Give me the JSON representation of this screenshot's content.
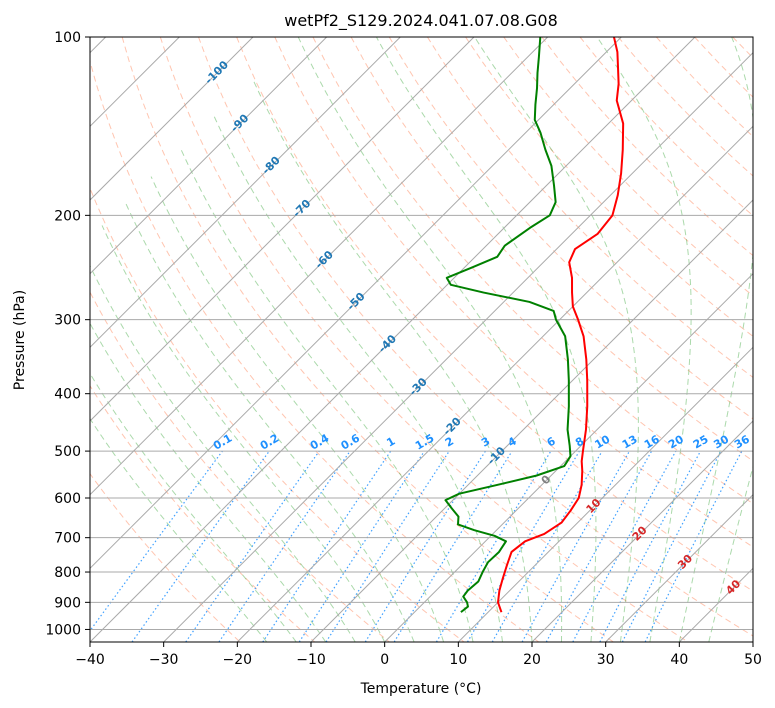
{
  "chart_data": {
    "type": "skew-t",
    "title": "wetPf2_S129.2024.041.07.08.G08",
    "xlabel": "Temperature (°C)",
    "ylabel": "Pressure (hPa)",
    "xlim": [
      -40,
      50
    ],
    "ylim": [
      1050,
      100
    ],
    "x_ticks": [
      -40,
      -30,
      -20,
      -10,
      0,
      10,
      20,
      30,
      40,
      50
    ],
    "y_ticks": [
      100,
      200,
      300,
      400,
      500,
      600,
      700,
      800,
      900,
      1000
    ],
    "grid": true,
    "colors": {
      "temperature": "#ff0000",
      "dewpoint": "#008000",
      "grid": "#aaaaaa",
      "dry_adiabat": "#ff7f50",
      "moist_adiabat": "#2ca02c",
      "mixing_ratio": "#1e90ff",
      "mixing_ratio_label": "#1e90ff",
      "isotherm_label_cold": "#1f77b4",
      "isotherm_label_warm": "#d62728",
      "isotherm_label_zero": "#808080"
    },
    "isotherm_labels": [
      "-100",
      "-90",
      "-80",
      "-70",
      "-60",
      "-50",
      "-40",
      "-30",
      "-20",
      "-10",
      "0",
      "10",
      "20",
      "30",
      "40"
    ],
    "mixing_ratio_labels": [
      "0.1",
      "0.2",
      "0.4",
      "0.6",
      "1",
      "1.5",
      "2",
      "3",
      "4",
      "6",
      "8",
      "10",
      "13",
      "16",
      "20",
      "25",
      "30",
      "36"
    ],
    "series": [
      {
        "name": "Temperature",
        "points": [
          {
            "p": 935,
            "t": 11.8
          },
          {
            "p": 900,
            "t": 10.0
          },
          {
            "p": 860,
            "t": 8.6
          },
          {
            "p": 820,
            "t": 7.4
          },
          {
            "p": 780,
            "t": 6.2
          },
          {
            "p": 740,
            "t": 5.0
          },
          {
            "p": 710,
            "t": 5.4
          },
          {
            "p": 690,
            "t": 7.0
          },
          {
            "p": 660,
            "t": 7.8
          },
          {
            "p": 630,
            "t": 7.4
          },
          {
            "p": 600,
            "t": 6.8
          },
          {
            "p": 570,
            "t": 5.4
          },
          {
            "p": 540,
            "t": 3.6
          },
          {
            "p": 520,
            "t": 2.2
          },
          {
            "p": 500,
            "t": 1.0
          },
          {
            "p": 460,
            "t": -1.5
          },
          {
            "p": 420,
            "t": -4.5
          },
          {
            "p": 380,
            "t": -8.0
          },
          {
            "p": 350,
            "t": -11.0
          },
          {
            "p": 320,
            "t": -14.5
          },
          {
            "p": 300,
            "t": -17.5
          },
          {
            "p": 285,
            "t": -20.0
          },
          {
            "p": 270,
            "t": -22.0
          },
          {
            "p": 255,
            "t": -24.0
          },
          {
            "p": 240,
            "t": -26.5
          },
          {
            "p": 228,
            "t": -27.5
          },
          {
            "p": 215,
            "t": -26.5
          },
          {
            "p": 200,
            "t": -27.0
          },
          {
            "p": 185,
            "t": -29.0
          },
          {
            "p": 170,
            "t": -31.5
          },
          {
            "p": 155,
            "t": -34.5
          },
          {
            "p": 140,
            "t": -38.0
          },
          {
            "p": 128,
            "t": -42.0
          },
          {
            "p": 120,
            "t": -44.0
          },
          {
            "p": 112,
            "t": -46.5
          },
          {
            "p": 106,
            "t": -48.5
          },
          {
            "p": 100,
            "t": -51.0
          }
        ]
      },
      {
        "name": "Dewpoint",
        "points": [
          {
            "p": 935,
            "t": 6.3
          },
          {
            "p": 915,
            "t": 6.5
          },
          {
            "p": 900,
            "t": 5.8
          },
          {
            "p": 880,
            "t": 4.5
          },
          {
            "p": 860,
            "t": 4.3
          },
          {
            "p": 830,
            "t": 4.5
          },
          {
            "p": 800,
            "t": 3.8
          },
          {
            "p": 770,
            "t": 3.2
          },
          {
            "p": 740,
            "t": 3.3
          },
          {
            "p": 710,
            "t": 2.8
          },
          {
            "p": 695,
            "t": 0.5
          },
          {
            "p": 680,
            "t": -3.0
          },
          {
            "p": 665,
            "t": -6.0
          },
          {
            "p": 645,
            "t": -7.0
          },
          {
            "p": 625,
            "t": -9.0
          },
          {
            "p": 605,
            "t": -11.0
          },
          {
            "p": 590,
            "t": -10.0
          },
          {
            "p": 570,
            "t": -6.0
          },
          {
            "p": 550,
            "t": -2.0
          },
          {
            "p": 530,
            "t": 0.5
          },
          {
            "p": 510,
            "t": 0.0
          },
          {
            "p": 490,
            "t": -1.5
          },
          {
            "p": 460,
            "t": -4.0
          },
          {
            "p": 420,
            "t": -7.0
          },
          {
            "p": 380,
            "t": -10.5
          },
          {
            "p": 350,
            "t": -13.5
          },
          {
            "p": 320,
            "t": -17.0
          },
          {
            "p": 300,
            "t": -20.5
          },
          {
            "p": 290,
            "t": -22.0
          },
          {
            "p": 280,
            "t": -26.5
          },
          {
            "p": 270,
            "t": -34.0
          },
          {
            "p": 262,
            "t": -39.5
          },
          {
            "p": 255,
            "t": -41.0
          },
          {
            "p": 245,
            "t": -39.0
          },
          {
            "p": 235,
            "t": -37.0
          },
          {
            "p": 225,
            "t": -37.5
          },
          {
            "p": 210,
            "t": -36.5
          },
          {
            "p": 200,
            "t": -35.5
          },
          {
            "p": 190,
            "t": -36.5
          },
          {
            "p": 178,
            "t": -39.0
          },
          {
            "p": 165,
            "t": -42.0
          },
          {
            "p": 155,
            "t": -45.0
          },
          {
            "p": 145,
            "t": -48.0
          },
          {
            "p": 138,
            "t": -50.5
          },
          {
            "p": 130,
            "t": -52.5
          },
          {
            "p": 122,
            "t": -54.5
          },
          {
            "p": 115,
            "t": -56.5
          },
          {
            "p": 108,
            "t": -58.5
          },
          {
            "p": 100,
            "t": -61.0
          }
        ]
      }
    ]
  }
}
